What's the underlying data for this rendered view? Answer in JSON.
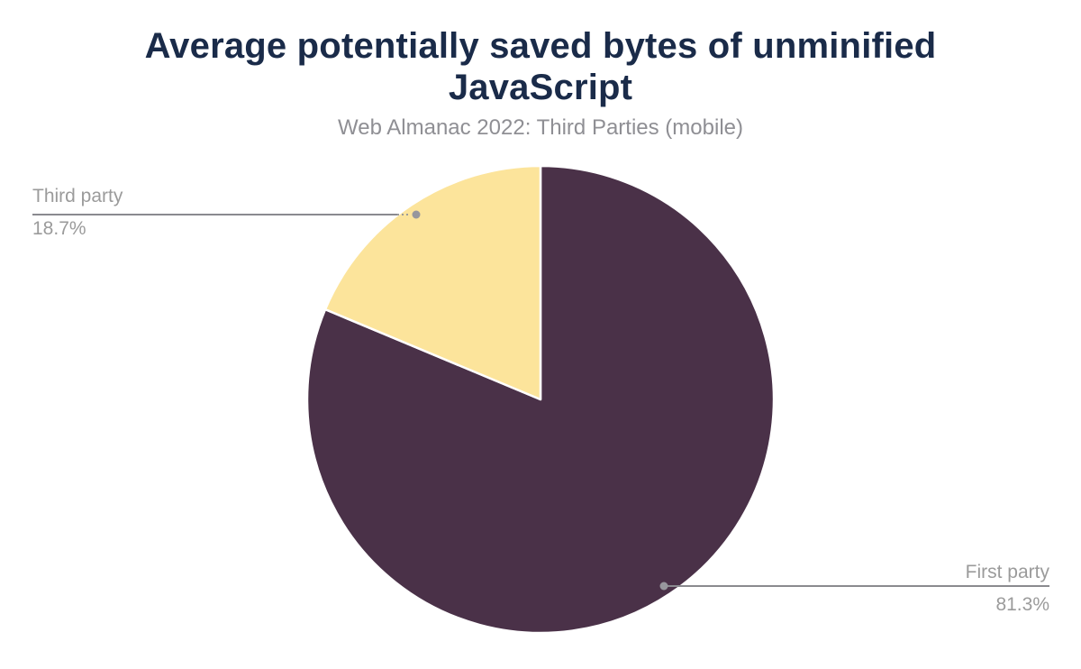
{
  "chart_data": {
    "type": "pie",
    "title": "Average potentially saved bytes of unminified JavaScript",
    "subtitle": "Web Almanac 2022: Third Parties (mobile)",
    "direction": "clockwise",
    "start_angle_deg": 0,
    "legend_position": "callout-labels",
    "slices": [
      {
        "label": "First party",
        "value_pct": 81.3,
        "display_pct": "81.3%",
        "color": "#4a3148"
      },
      {
        "label": "Third party",
        "value_pct": 18.7,
        "display_pct": "18.7%",
        "color": "#fce49b"
      }
    ]
  },
  "colors": {
    "title": "#1a2b49",
    "subtitle": "#8f8f94",
    "label_text": "#9b9b9b",
    "connector_line": "#8a8a8f",
    "connector_dot": "#97979d",
    "slice_divider": "#ffffff",
    "background": "#ffffff"
  }
}
